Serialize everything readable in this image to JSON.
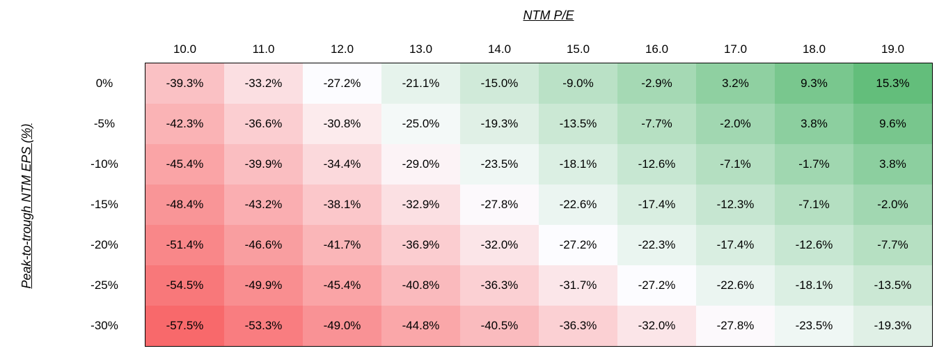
{
  "chart_data": {
    "type": "heatmap",
    "title": "",
    "xlabel": "NTM P/E",
    "ylabel": "Peak-to-trough NTM EPS (%)",
    "x": [
      "10.0",
      "11.0",
      "12.0",
      "13.0",
      "14.0",
      "15.0",
      "16.0",
      "17.0",
      "18.0",
      "19.0"
    ],
    "y": [
      "0%",
      "-5%",
      "-10%",
      "-15%",
      "-20%",
      "-25%",
      "-30%"
    ],
    "values": [
      [
        -39.3,
        -33.2,
        -27.2,
        -21.1,
        -15.0,
        -9.0,
        -2.9,
        3.2,
        9.3,
        15.3
      ],
      [
        -42.3,
        -36.6,
        -30.8,
        -25.0,
        -19.3,
        -13.5,
        -7.7,
        -2.0,
        3.8,
        9.6
      ],
      [
        -45.4,
        -39.9,
        -34.4,
        -29.0,
        -23.5,
        -18.1,
        -12.6,
        -7.1,
        -1.7,
        3.8
      ],
      [
        -48.4,
        -43.2,
        -38.1,
        -32.9,
        -27.8,
        -22.6,
        -17.4,
        -12.3,
        -7.1,
        -2.0
      ],
      [
        -51.4,
        -46.6,
        -41.7,
        -36.9,
        -32.0,
        -27.2,
        -22.3,
        -17.4,
        -12.6,
        -7.7
      ],
      [
        -54.5,
        -49.9,
        -45.4,
        -40.8,
        -36.3,
        -31.7,
        -27.2,
        -22.6,
        -18.1,
        -13.5
      ],
      [
        -57.5,
        -53.3,
        -49.0,
        -44.8,
        -40.5,
        -36.3,
        -32.0,
        -27.8,
        -23.5,
        -19.3
      ]
    ],
    "colors": {
      "low": "#f8696b",
      "mid": "#fcfcff",
      "high": "#63be7b"
    },
    "grid": false,
    "legend": "none"
  }
}
